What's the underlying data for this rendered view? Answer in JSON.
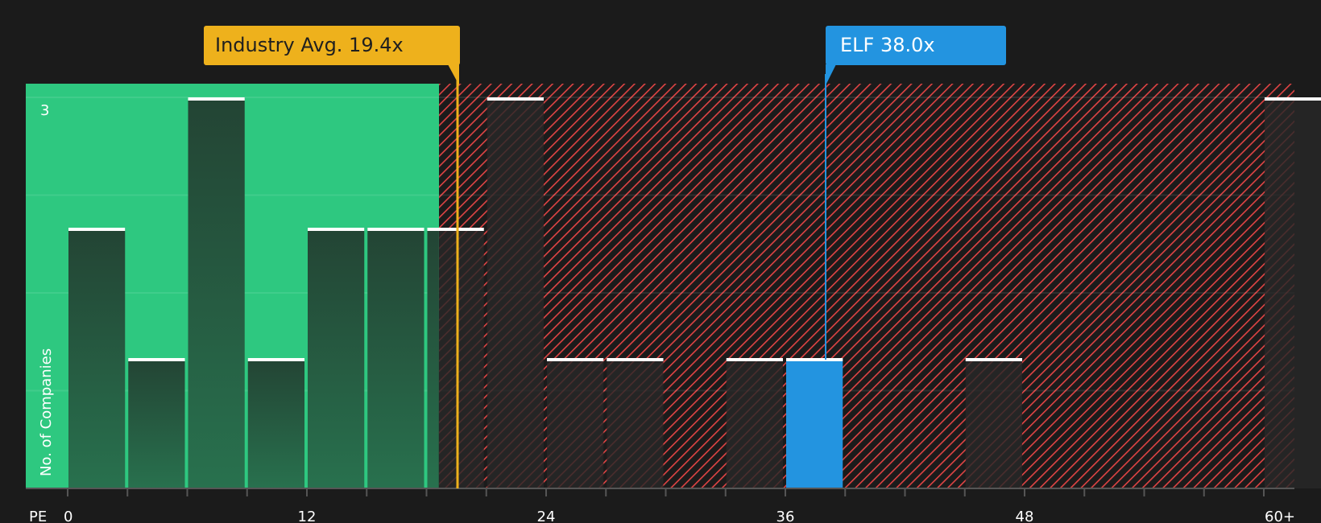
{
  "chart_data": {
    "type": "bar",
    "title": "",
    "xlabel": "PE",
    "ylabel": "No. of Companies",
    "x_tick_labels": [
      "0",
      "12",
      "24",
      "36",
      "48",
      "60+"
    ],
    "y_tick_labels": [
      "3"
    ],
    "ylim": [
      0,
      3
    ],
    "bin_width": 3,
    "bins": [
      {
        "start": 0,
        "count": 2,
        "highlight": false
      },
      {
        "start": 3,
        "count": 1,
        "highlight": false
      },
      {
        "start": 6,
        "count": 3,
        "highlight": false
      },
      {
        "start": 9,
        "count": 1,
        "highlight": false
      },
      {
        "start": 12,
        "count": 2,
        "highlight": false
      },
      {
        "start": 15,
        "count": 2,
        "highlight": false
      },
      {
        "start": 18,
        "count": 2,
        "highlight": false
      },
      {
        "start": 21,
        "count": 3,
        "highlight": false
      },
      {
        "start": 24,
        "count": 1,
        "highlight": false
      },
      {
        "start": 27,
        "count": 1,
        "highlight": false
      },
      {
        "start": 30,
        "count": 0,
        "highlight": false
      },
      {
        "start": 33,
        "count": 1,
        "highlight": false
      },
      {
        "start": 36,
        "count": 1,
        "highlight": true
      },
      {
        "start": 39,
        "count": 0,
        "highlight": false
      },
      {
        "start": 42,
        "count": 0,
        "highlight": false
      },
      {
        "start": 45,
        "count": 1,
        "highlight": false
      },
      {
        "start": 48,
        "count": 0,
        "highlight": false
      },
      {
        "start": 51,
        "count": 0,
        "highlight": false
      },
      {
        "start": 54,
        "count": 0,
        "highlight": false
      },
      {
        "start": 57,
        "count": 0,
        "highlight": false
      },
      {
        "start": 60,
        "count": 3,
        "highlight": false,
        "label": "60+"
      }
    ],
    "regions": [
      {
        "name": "undervalued",
        "from": 0,
        "to": 18.6,
        "color": "#2ec880"
      },
      {
        "name": "overvalued",
        "from": 18.6,
        "to": 61.5,
        "color": "#e04444",
        "pattern": "hatched"
      }
    ],
    "annotations": [
      {
        "label": "Industry Avg. 19.4x",
        "value": 19.4,
        "color": "#eeb11c"
      },
      {
        "label": "ELF 38.0x",
        "value": 38.0,
        "color": "#2394e0"
      }
    ],
    "grid": true,
    "legend": null
  },
  "callouts": {
    "industry": "Industry Avg. 19.4x",
    "company": "ELF 38.0x"
  },
  "axis": {
    "x_title": "PE",
    "y_title": "No. of Companies",
    "y_max_label": "3"
  },
  "colors": {
    "background": "#1b1b1b",
    "green_zone": "#2ec880",
    "red_hatch": "#e04444",
    "industry": "#eeb11c",
    "company": "#2394e0"
  }
}
